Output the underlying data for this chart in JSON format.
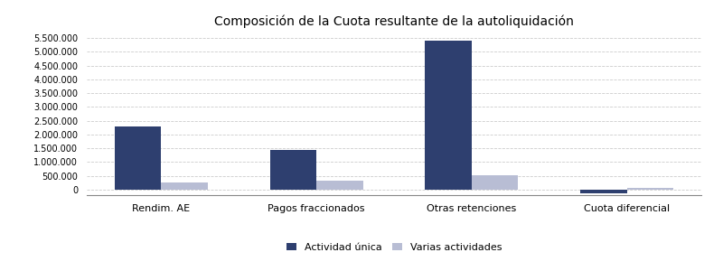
{
  "title": "Composición de la Cuota resultante de la autoliquidación",
  "categories": [
    "Rendim. AE",
    "Pagos fraccionados",
    "Otras retenciones",
    "Cuota diferencial"
  ],
  "actividad_unica": [
    2300000,
    1450000,
    5400000,
    -130000
  ],
  "varias_actividades": [
    270000,
    330000,
    520000,
    75000
  ],
  "color_unica": "#2e3f6f",
  "color_varias": "#b8bdd4",
  "ylim": [
    -200000,
    5700000
  ],
  "yticks": [
    0,
    500000,
    1000000,
    1500000,
    2000000,
    2500000,
    3000000,
    3500000,
    4000000,
    4500000,
    5000000,
    5500000
  ],
  "legend_labels": [
    "Actividad única",
    "Varias actividades"
  ],
  "bar_width": 0.3,
  "background_color": "#ffffff",
  "grid_color": "#cccccc",
  "title_fontsize": 10,
  "tick_fontsize": 7,
  "xlabel_fontsize": 8
}
